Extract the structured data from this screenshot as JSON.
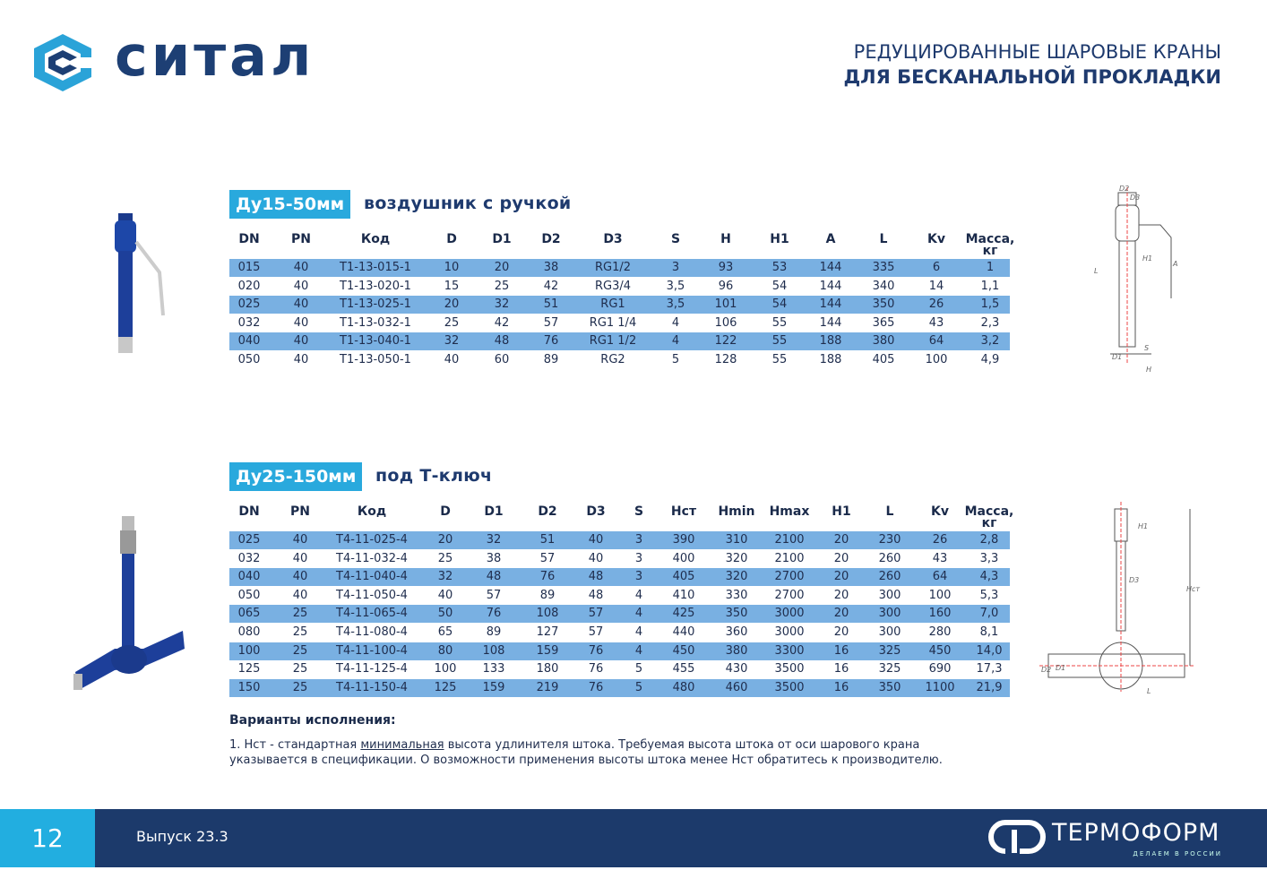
{
  "header": {
    "logo": "ситал",
    "title_line1": "РЕДУЦИРОВАННЫЕ ШАРОВЫЕ КРАНЫ",
    "title_line2": "ДЛЯ БЕСКАНАЛЬНОЙ ПРОКЛАДКИ"
  },
  "section1": {
    "badge": "Ду15-50мм",
    "subtitle": "воздушник с ручкой",
    "columns": [
      "DN",
      "PN",
      "Код",
      "D",
      "D1",
      "D2",
      "D3",
      "S",
      "H",
      "H1",
      "A",
      "L",
      "Kv",
      "Масса, кг"
    ],
    "rows": [
      [
        "015",
        "40",
        "T1-13-015-1",
        "10",
        "20",
        "38",
        "RG1/2",
        "3",
        "93",
        "53",
        "144",
        "335",
        "6",
        "1"
      ],
      [
        "020",
        "40",
        "T1-13-020-1",
        "15",
        "25",
        "42",
        "RG3/4",
        "3,5",
        "96",
        "54",
        "144",
        "340",
        "14",
        "1,1"
      ],
      [
        "025",
        "40",
        "T1-13-025-1",
        "20",
        "32",
        "51",
        "RG1",
        "3,5",
        "101",
        "54",
        "144",
        "350",
        "26",
        "1,5"
      ],
      [
        "032",
        "40",
        "T1-13-032-1",
        "25",
        "42",
        "57",
        "RG1 1/4",
        "4",
        "106",
        "55",
        "144",
        "365",
        "43",
        "2,3"
      ],
      [
        "040",
        "40",
        "T1-13-040-1",
        "32",
        "48",
        "76",
        "RG1 1/2",
        "4",
        "122",
        "55",
        "188",
        "380",
        "64",
        "3,2"
      ],
      [
        "050",
        "40",
        "T1-13-050-1",
        "40",
        "60",
        "89",
        "RG2",
        "5",
        "128",
        "55",
        "188",
        "405",
        "100",
        "4,9"
      ]
    ],
    "diagram_labels": [
      "D2",
      "D3",
      "H1",
      "L",
      "A",
      "S",
      "D1",
      "H"
    ]
  },
  "section2": {
    "badge": "Ду25-150мм",
    "subtitle": "под Т-ключ",
    "columns": [
      "DN",
      "PN",
      "Код",
      "D",
      "D1",
      "D2",
      "D3",
      "S",
      "Нст",
      "Hmin",
      "Hmax",
      "H1",
      "L",
      "Kv",
      "Масса, кг"
    ],
    "rows": [
      [
        "025",
        "40",
        "T4-11-025-4",
        "20",
        "32",
        "51",
        "40",
        "3",
        "390",
        "310",
        "2100",
        "20",
        "230",
        "26",
        "2,8"
      ],
      [
        "032",
        "40",
        "T4-11-032-4",
        "25",
        "38",
        "57",
        "40",
        "3",
        "400",
        "320",
        "2100",
        "20",
        "260",
        "43",
        "3,3"
      ],
      [
        "040",
        "40",
        "T4-11-040-4",
        "32",
        "48",
        "76",
        "48",
        "3",
        "405",
        "320",
        "2700",
        "20",
        "260",
        "64",
        "4,3"
      ],
      [
        "050",
        "40",
        "T4-11-050-4",
        "40",
        "57",
        "89",
        "48",
        "4",
        "410",
        "330",
        "2700",
        "20",
        "300",
        "100",
        "5,3"
      ],
      [
        "065",
        "25",
        "T4-11-065-4",
        "50",
        "76",
        "108",
        "57",
        "4",
        "425",
        "350",
        "3000",
        "20",
        "300",
        "160",
        "7,0"
      ],
      [
        "080",
        "25",
        "T4-11-080-4",
        "65",
        "89",
        "127",
        "57",
        "4",
        "440",
        "360",
        "3000",
        "20",
        "300",
        "280",
        "8,1"
      ],
      [
        "100",
        "25",
        "T4-11-100-4",
        "80",
        "108",
        "159",
        "76",
        "4",
        "450",
        "380",
        "3300",
        "16",
        "325",
        "450",
        "14,0"
      ],
      [
        "125",
        "25",
        "T4-11-125-4",
        "100",
        "133",
        "180",
        "76",
        "5",
        "455",
        "430",
        "3500",
        "16",
        "325",
        "690",
        "17,3"
      ],
      [
        "150",
        "25",
        "T4-11-150-4",
        "125",
        "159",
        "219",
        "76",
        "5",
        "480",
        "460",
        "3500",
        "16",
        "350",
        "1100",
        "21,9"
      ]
    ],
    "diagram_labels": [
      "H1",
      "D3",
      "Hст",
      "D2",
      "D1",
      "L"
    ]
  },
  "notes": {
    "heading": "Варианты исполнения:",
    "text_before": "1. Нст - стандартная ",
    "text_underlined": "минимальная",
    "text_after": " высота удлинителя штока. Требуемая высота штока от оси шарового крана указывается в спецификации. О возможности применения высоты штока менее Нст обратитесь к производителю."
  },
  "footer": {
    "page": "12",
    "issue": "Выпуск 23.3",
    "brand": "ТЕРМОФОРМ",
    "tagline": "ДЕЛАЕМ В РОССИИ"
  }
}
